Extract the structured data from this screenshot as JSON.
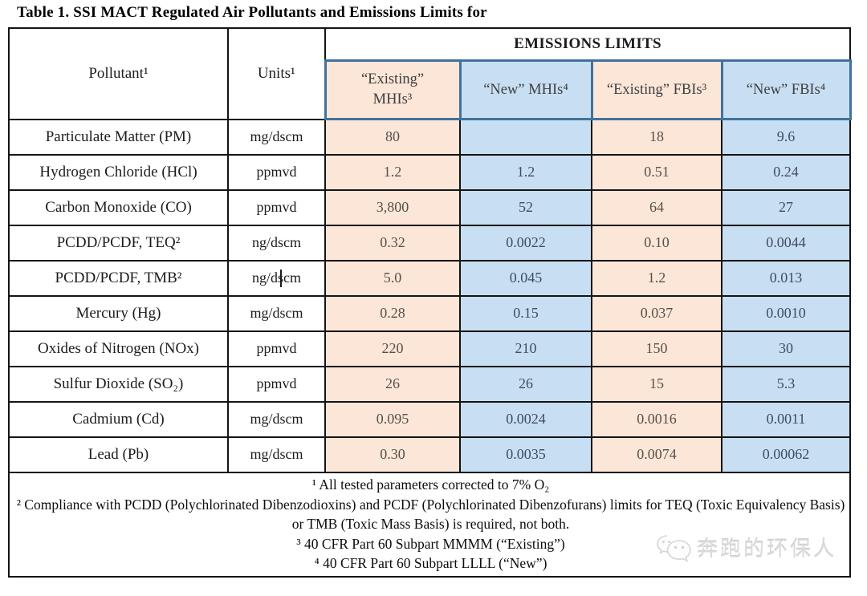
{
  "title": "Table 1. SSI MACT Regulated Air Pollutants and Emissions Limits for",
  "table": {
    "header": {
      "pollutant": "Pollutant¹",
      "units": "Units¹",
      "emissions_limits": "EMISSIONS LIMITS",
      "columns": [
        {
          "key": "existing-mhi",
          "label": "“Existing”\nMHIs³",
          "scheme": "peach"
        },
        {
          "key": "new-mhi",
          "label": "“New” MHIs⁴",
          "scheme": "blue"
        },
        {
          "key": "existing-fbi",
          "label": "“Existing” FBIs³",
          "scheme": "peach"
        },
        {
          "key": "new-fbi",
          "label": "“New” FBIs⁴",
          "scheme": "blue"
        }
      ]
    },
    "rows": [
      {
        "pollutant": "Particulate Matter (PM)",
        "units": "mg/dscm",
        "values": [
          "80",
          "",
          "18",
          "9.6"
        ]
      },
      {
        "pollutant": "Hydrogen Chloride (HCl)",
        "units": "ppmvd",
        "values": [
          "1.2",
          "1.2",
          "0.51",
          "0.24"
        ]
      },
      {
        "pollutant": "Carbon Monoxide (CO)",
        "units": "ppmvd",
        "values": [
          "3,800",
          "52",
          "64",
          "27"
        ]
      },
      {
        "pollutant": "PCDD/PCDF, TEQ²",
        "units": "ng/dscm",
        "values": [
          "0.32",
          "0.0022",
          "0.10",
          "0.0044"
        ]
      },
      {
        "pollutant": "PCDD/PCDF, TMB²",
        "units": "ng/dscm",
        "values": [
          "5.0",
          "0.045",
          "1.2",
          "0.013"
        ],
        "has_text_caret": true
      },
      {
        "pollutant": "Mercury (Hg)",
        "units": "mg/dscm",
        "values": [
          "0.28",
          "0.15",
          "0.037",
          "0.0010"
        ]
      },
      {
        "pollutant": "Oxides of Nitrogen (NOx)",
        "units": "ppmvd",
        "values": [
          "220",
          "210",
          "150",
          "30"
        ]
      },
      {
        "pollutant": "Sulfur Dioxide (SO₂)",
        "units": "ppmvd",
        "values": [
          "26",
          "26",
          "15",
          "5.3"
        ]
      },
      {
        "pollutant": "Cadmium (Cd)",
        "units": "mg/dscm",
        "values": [
          "0.095",
          "0.0024",
          "0.0016",
          "0.0011"
        ]
      },
      {
        "pollutant": "Lead (Pb)",
        "units": "mg/dscm",
        "values": [
          "0.30",
          "0.0035",
          "0.0074",
          "0.00062"
        ]
      }
    ],
    "footnotes": [
      "¹ All tested parameters corrected to 7% O₂",
      "² Compliance with PCDD (Polychlorinated Dibenzodioxins) and PCDF (Polychlorinated Dibenzofurans) limits for TEQ (Toxic Equivalency Basis) or TMB (Toxic Mass Basis) is required, not both.",
      "³ 40 CFR Part 60 Subpart MMMM (“Existing”)",
      "⁴ 40 CFR Part 60 Subpart LLLL (“New”)"
    ]
  },
  "watermark": {
    "text": "奔跑的环保人",
    "icon": "wechat-bubbles-icon"
  },
  "colors": {
    "peach_cell": "#fbe6d8",
    "blue_cell": "#c8dff3",
    "cell_border_blue": "#41719c",
    "grid_black": "#141414",
    "watermark_gray": "#dadada"
  }
}
